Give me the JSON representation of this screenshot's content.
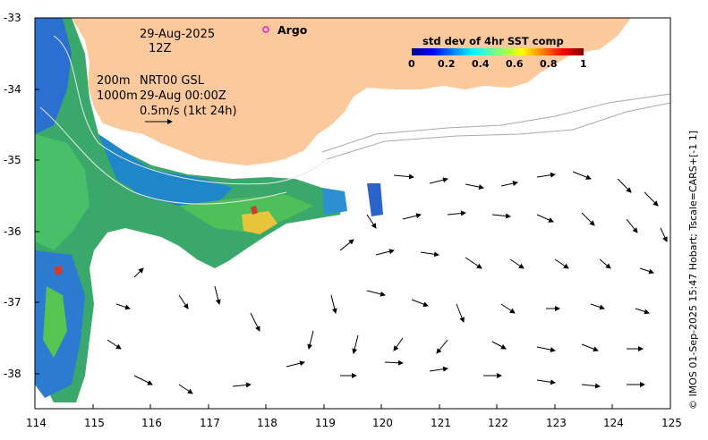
{
  "map": {
    "x_ticks": [
      "114",
      "115",
      "116",
      "117",
      "118",
      "119",
      "120",
      "121",
      "122",
      "123",
      "124",
      "125"
    ],
    "y_ticks": [
      "-33",
      "-34",
      "-35",
      "-36",
      "-37",
      "-38"
    ],
    "lon_range": [
      114,
      125
    ],
    "lat_range": [
      -38.5,
      -33
    ]
  },
  "annotations": {
    "date": "29-Aug-2025",
    "time": "12Z",
    "depth_200": "200m",
    "product": "NRT00 GSL",
    "depth_1000": "1000m",
    "valid": "29-Aug 00:00Z",
    "scale": "0.5m/s (1kt 24h)",
    "argo": "Argo"
  },
  "colorbar": {
    "title": "std dev of 4hr SST comp",
    "ticks": [
      "0",
      "0.2",
      "0.4",
      "0.6",
      "0.8",
      "1"
    ]
  },
  "credit": "© IMOS 01-Sep-2025 15:47 Hobart; Tscale=CARS+[-1 1]",
  "colors": {
    "land": "#fbc99c",
    "frame": "#000000"
  }
}
